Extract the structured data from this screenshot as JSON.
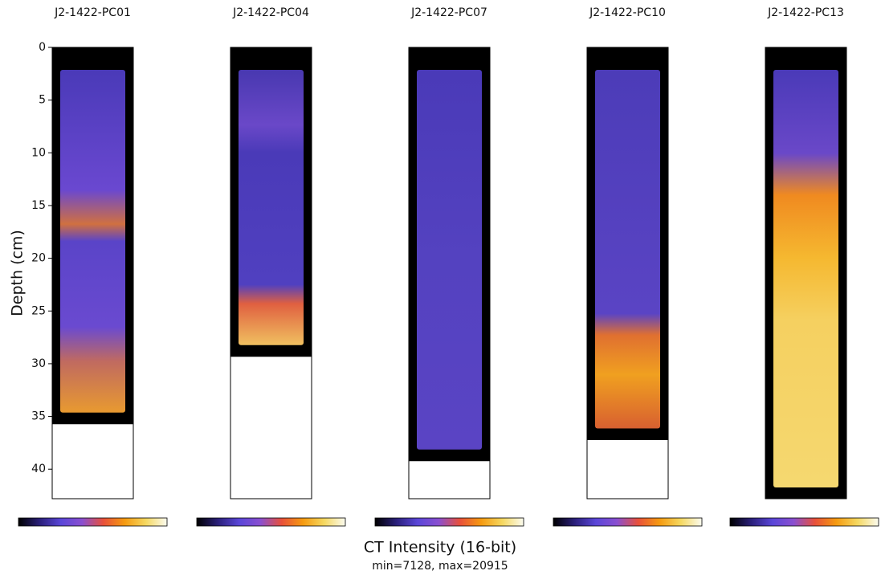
{
  "chart_data": {
    "type": "core-images",
    "ylabel": "Depth (cm)",
    "ylim": [
      0,
      42.8
    ],
    "yticks": [
      0,
      5,
      10,
      15,
      20,
      25,
      30,
      35,
      40
    ],
    "cores": [
      {
        "name": "J2-1422-PC01",
        "length": 35.7
      },
      {
        "name": "J2-1422-PC04",
        "length": 29.3
      },
      {
        "name": "J2-1422-PC07",
        "length": 39.2
      },
      {
        "name": "J2-1422-PC10",
        "length": 37.2
      },
      {
        "name": "J2-1422-PC13",
        "length": 42.8
      }
    ],
    "colormap": [
      "#000000",
      "#2a1f7a",
      "#5a46d8",
      "#8a4fd0",
      "#e8503a",
      "#f59a10",
      "#f5d860",
      "#fbfbf0"
    ],
    "colorbar_label": "CT Intensity (16-bit)",
    "colorbar_range": "min=7128, max=20915"
  }
}
